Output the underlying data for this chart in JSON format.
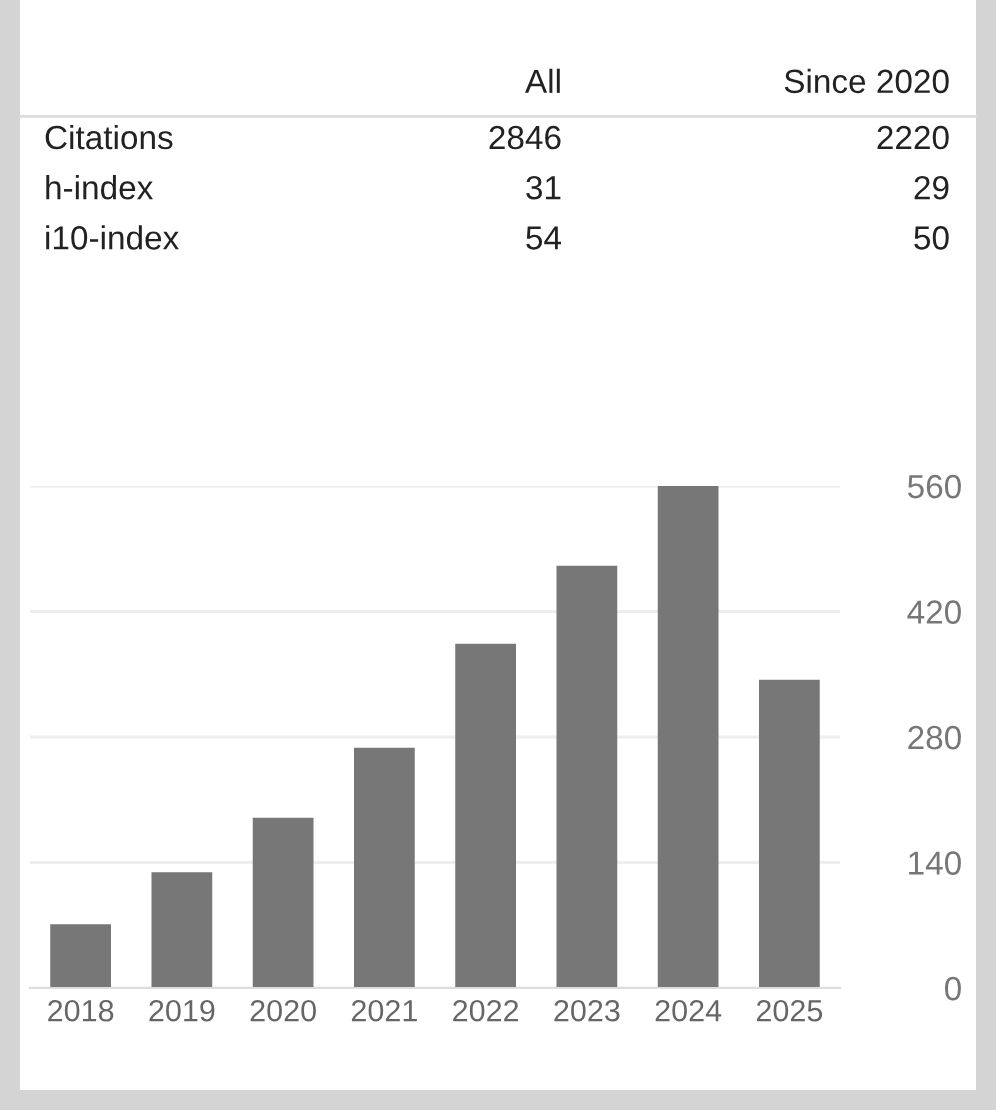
{
  "chart_data": [
    {
      "type": "other",
      "categories": [
        "All",
        "Since 2020"
      ],
      "y_categories": [
        "Citations",
        "h-index",
        "i10-index"
      ],
      "cell_labels": [
        [
          "2846",
          "2220"
        ],
        [
          "31",
          "29"
        ],
        [
          "54",
          "50"
        ]
      ]
    },
    {
      "type": "bar",
      "categories": [
        "2018",
        "2019",
        "2020",
        "2021",
        "2022",
        "2023",
        "2024",
        "2025"
      ],
      "values": [
        71,
        129,
        190,
        268,
        384,
        471,
        560,
        344
      ],
      "color": "#777777",
      "ylim": [
        0,
        560
      ],
      "yticks": [
        0,
        140,
        280,
        420,
        560
      ],
      "grid": "y"
    }
  ]
}
